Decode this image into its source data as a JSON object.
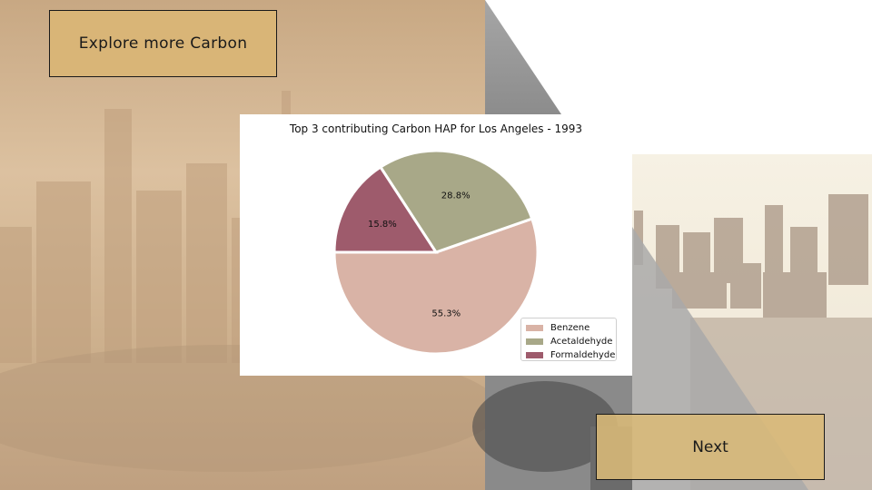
{
  "buttons": {
    "explore_label": "Explore more Carbon",
    "next_label": "Next"
  },
  "colors": {
    "benzene": "#d9b3a6",
    "acetaldehyde": "#a8a888",
    "formaldehyde": "#9e5b6c"
  },
  "chart_data": {
    "type": "pie",
    "title": "Top 3 contributing Carbon HAP for Los Angeles - 1993",
    "labels": [
      "Benzene",
      "Acetaldehyde",
      "Formaldehyde"
    ],
    "values": [
      55.3,
      28.8,
      15.8
    ],
    "value_labels": [
      "55.3%",
      "28.8%",
      "15.8%"
    ],
    "colors": [
      "#d9b3a6",
      "#a8a888",
      "#9e5b6c"
    ],
    "legend": "lower-right"
  }
}
